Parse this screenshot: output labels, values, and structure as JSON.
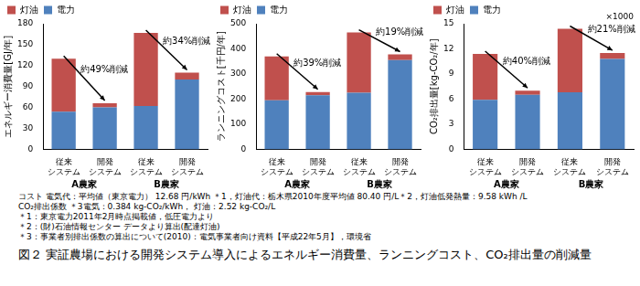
{
  "chart_data": [
    {
      "type": "bar",
      "stacked": true,
      "grid": false,
      "legend": "top",
      "y_label": "エネルギー消費量[GJ/年]",
      "categories": [
        "従来システム",
        "開発システム",
        "従来システム",
        "開発システム"
      ],
      "groups": [
        "A農家",
        "B農家"
      ],
      "series": [
        {
          "name": "電力",
          "color": "#4f81bd",
          "values": [
            54,
            60,
            62,
            100
          ]
        },
        {
          "name": "灯油",
          "color": "#c0504d",
          "values": [
            76,
            6,
            105,
            10
          ]
        }
      ],
      "ylim": [
        0,
        180
      ],
      "yticks": [
        0,
        30,
        60,
        90,
        120,
        150,
        180
      ],
      "annotations": [
        "約49%削減",
        "約34%削減"
      ]
    },
    {
      "type": "bar",
      "stacked": true,
      "grid": false,
      "legend": "top",
      "y_label": "ランニングコスト[千円/年]",
      "categories": [
        "従来システム",
        "開発システム",
        "従来システム",
        "開発システム"
      ],
      "groups": [
        "A農家",
        "B農家"
      ],
      "series": [
        {
          "name": "電力",
          "color": "#4f81bd",
          "values": [
            195,
            215,
            225,
            355
          ]
        },
        {
          "name": "灯油",
          "color": "#c0504d",
          "values": [
            175,
            13,
            240,
            23
          ]
        }
      ],
      "ylim": [
        0,
        500
      ],
      "yticks": [
        0,
        100,
        200,
        300,
        400,
        500
      ],
      "annotations": [
        "約39%削減",
        "約19%削減"
      ]
    },
    {
      "type": "bar",
      "stacked": true,
      "grid": false,
      "legend": "top",
      "y_label": "CO₂排出量[kg-CO₂/年]",
      "y_label_note": "×1000",
      "categories": [
        "従来システム",
        "開発システム",
        "従来システム",
        "開発システム"
      ],
      "groups": [
        "A農家",
        "B農家"
      ],
      "series": [
        {
          "name": "電力",
          "color": "#4f81bd",
          "values": [
            5.9,
            6.5,
            6.8,
            10.8
          ]
        },
        {
          "name": "灯油",
          "color": "#c0504d",
          "values": [
            5.5,
            0.5,
            7.6,
            0.7
          ]
        }
      ],
      "ylim": [
        0,
        15
      ],
      "yticks": [
        0,
        3,
        6,
        9,
        12,
        15
      ],
      "annotations": [
        "約40%削減",
        "約21%削減"
      ]
    }
  ],
  "notes": [
    "コスト 電気代：平均値（東京電力） 12.68 円/kWh ＊1，灯油代：栃木県2010年度平均値 80.40 円/L＊2，灯油低発熱量：9.58 kWh /L",
    "CO₂排出係数 ＊3電気：0.384 kg-CO₂/kWh， 灯油：2.52 kg-CO₂/L",
    "＊1：東京電力2011年2月時点掲載値，低圧電力より",
    "＊2：(財)石油情報センター データより算出(配達灯油)",
    "＊3：事業者別排出係数の算出について(2010)：電気事業者向け資料【平成22年5月】，環境省"
  ],
  "caption": "図２ 実証農場における開発システム導入によるエネルギー消費量、ランニングコスト、CO₂排出量の削減量"
}
